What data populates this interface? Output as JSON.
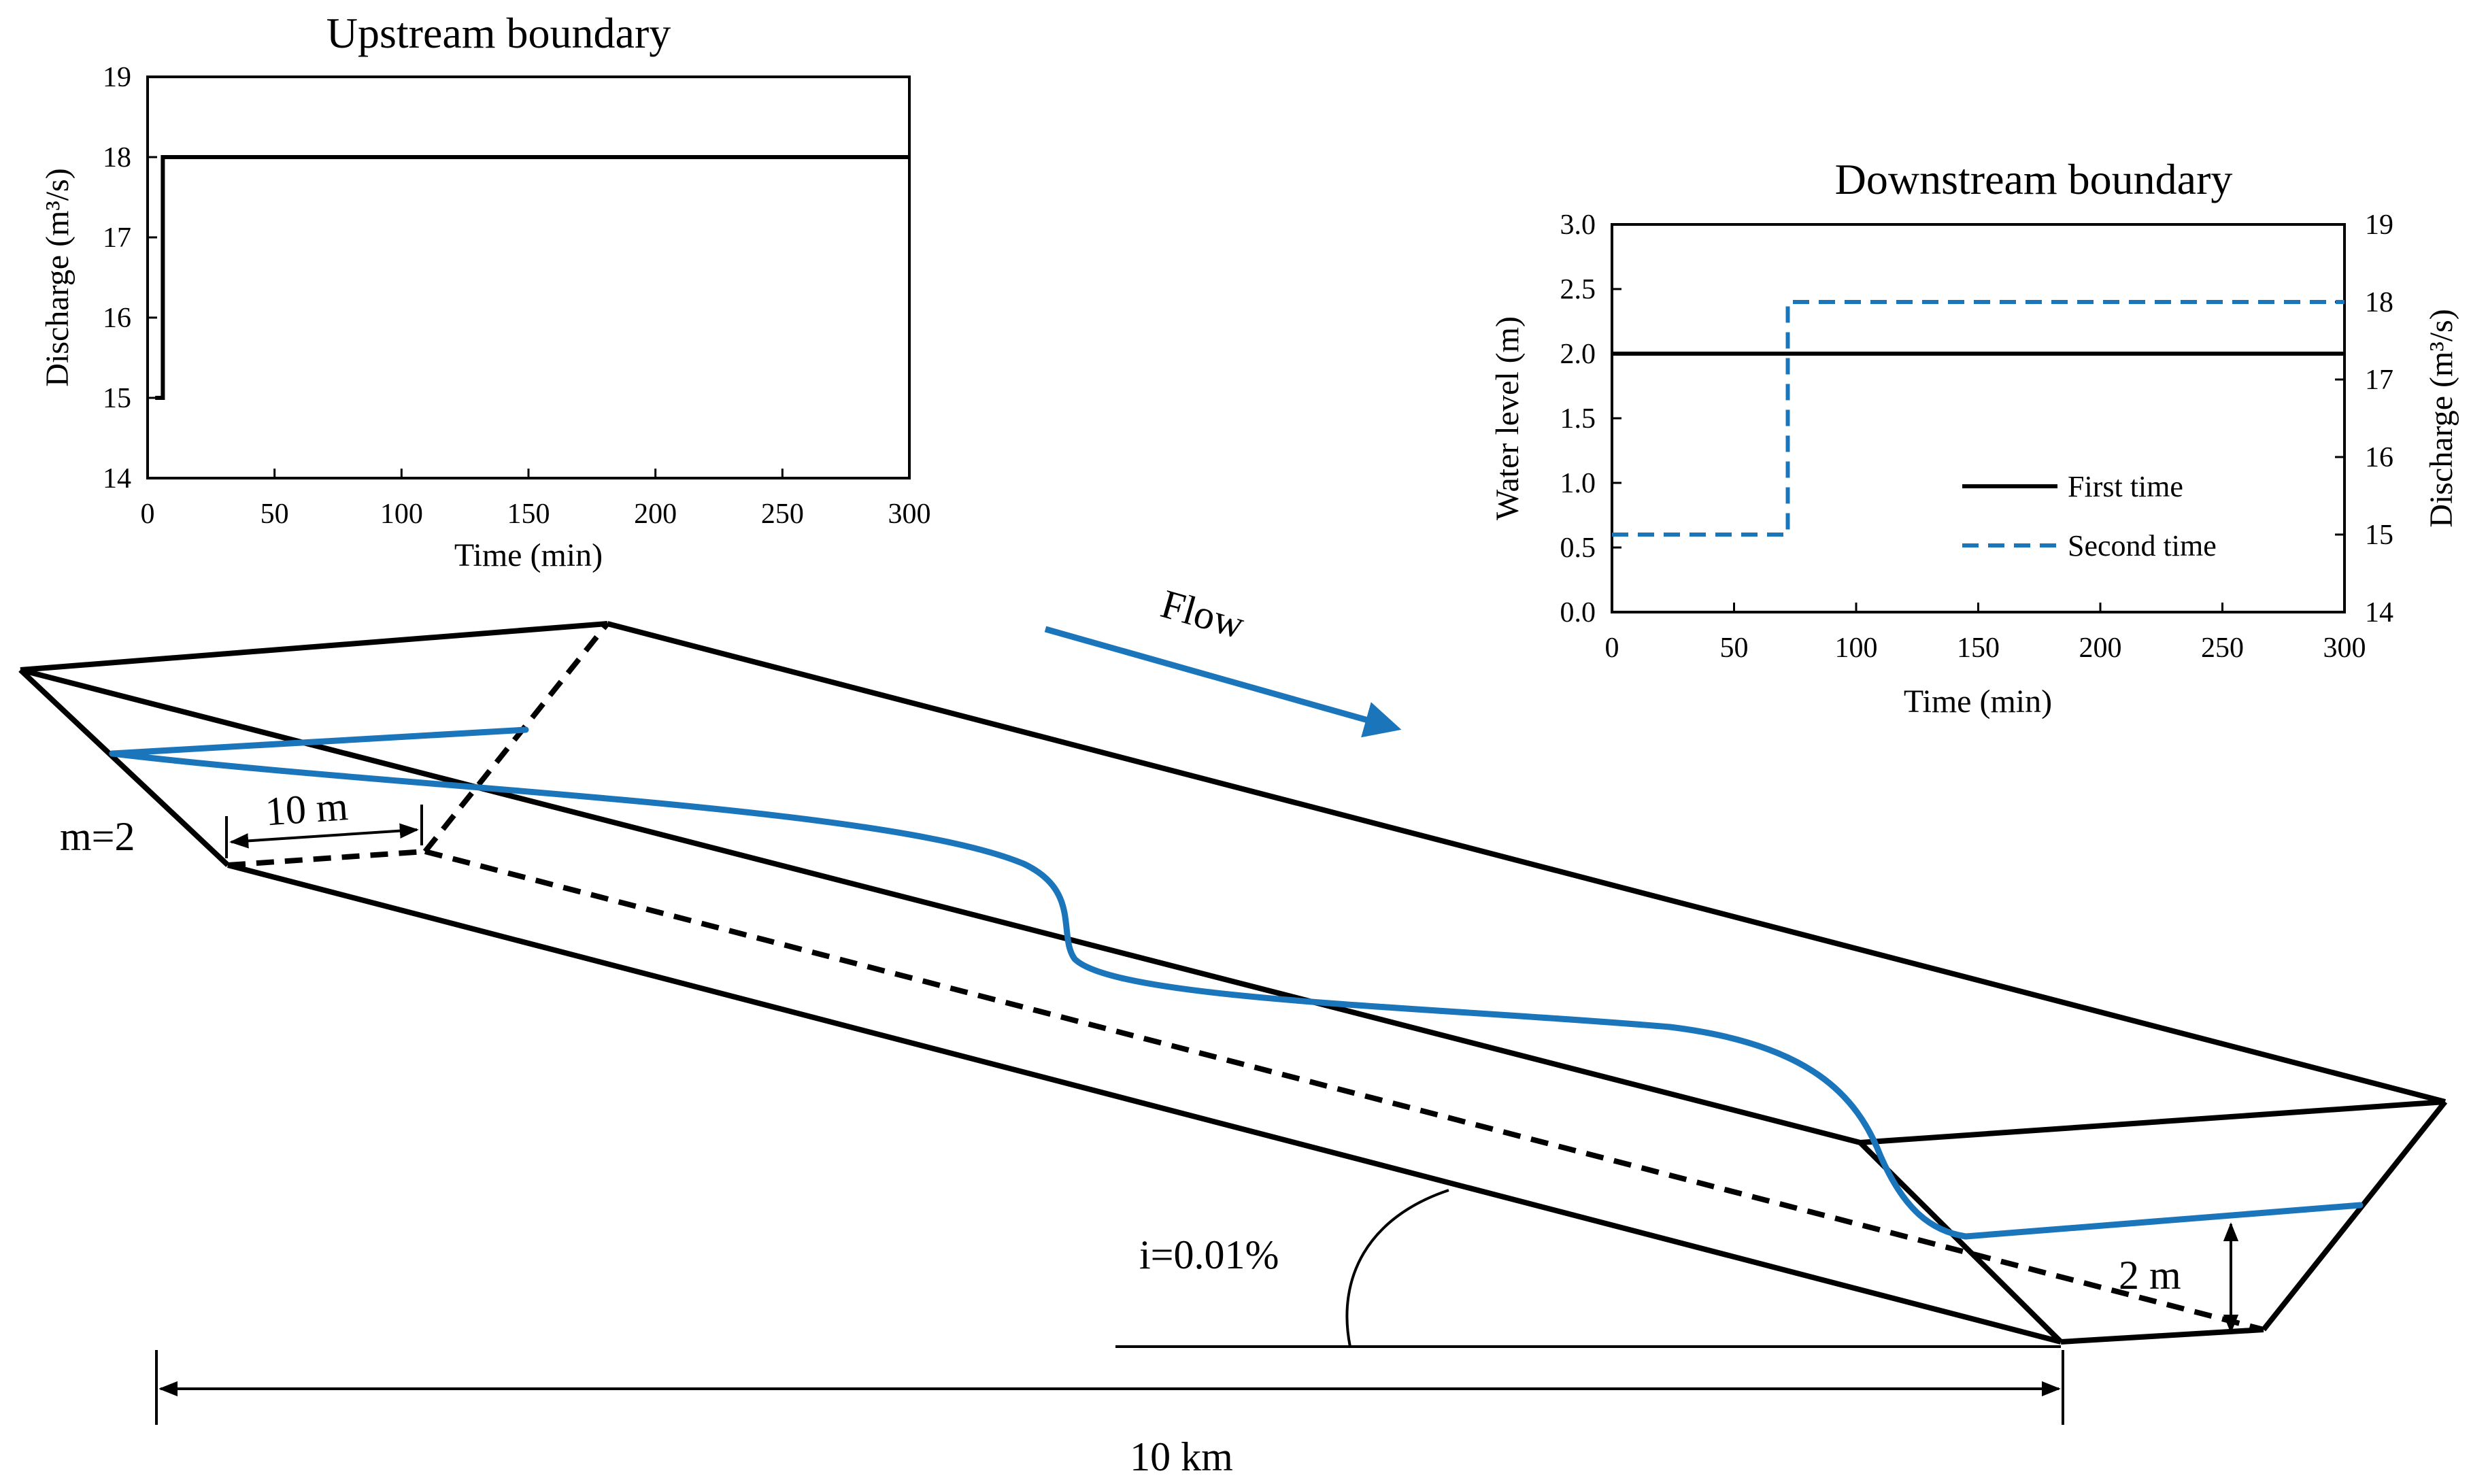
{
  "chart_data": [
    {
      "type": "line",
      "title": "Upstream boundary",
      "xlabel": "Time (min)",
      "ylabel": "Discharge (m³/s)",
      "xlim": [
        0,
        300
      ],
      "ylim": [
        14,
        19
      ],
      "xticks": [
        "0",
        "50",
        "100",
        "150",
        "200",
        "250",
        "300"
      ],
      "yticks": [
        "14",
        "15",
        "16",
        "17",
        "18",
        "19"
      ],
      "grid": false,
      "series": [
        {
          "x": [
            3,
            6,
            6,
            300
          ],
          "y": [
            15,
            15,
            18,
            18
          ],
          "color": "#000000",
          "style": "solid"
        }
      ]
    },
    {
      "type": "line",
      "title": "Downstream boundary",
      "xlabel": "Time (min)",
      "ylabel": "Water level (m)",
      "y2label": "Discharge (m³/s)",
      "xlim": [
        0,
        300
      ],
      "ylim": [
        0.0,
        3.0
      ],
      "y2lim": [
        14,
        19
      ],
      "xticks": [
        "0",
        "50",
        "100",
        "150",
        "200",
        "250",
        "300"
      ],
      "yticks": [
        "0.0",
        "0.5",
        "1.0",
        "1.5",
        "2.0",
        "2.5",
        "3.0"
      ],
      "y2ticks": [
        "14",
        "15",
        "16",
        "17",
        "18",
        "19"
      ],
      "grid": false,
      "legend": "bottom-right",
      "series": [
        {
          "name": "First time",
          "axis": "left",
          "x": [
            0,
            300
          ],
          "y": [
            2.0,
            2.0
          ],
          "color": "#000000",
          "style": "solid"
        },
        {
          "name": "Second time",
          "axis": "right",
          "x": [
            0,
            72,
            72,
            300
          ],
          "y": [
            15,
            15,
            18,
            18
          ],
          "color": "#1B75BB",
          "style": "dashed"
        }
      ]
    }
  ],
  "diagram": {
    "flow_label": "Flow",
    "side_slope_label": "m=2",
    "bottom_width_label": "10 m",
    "slope_label": "i=0.01%",
    "depth_label": "2 m",
    "length_label": "10 km",
    "colors": {
      "water": "#1B75BB",
      "line": "#000000"
    }
  }
}
